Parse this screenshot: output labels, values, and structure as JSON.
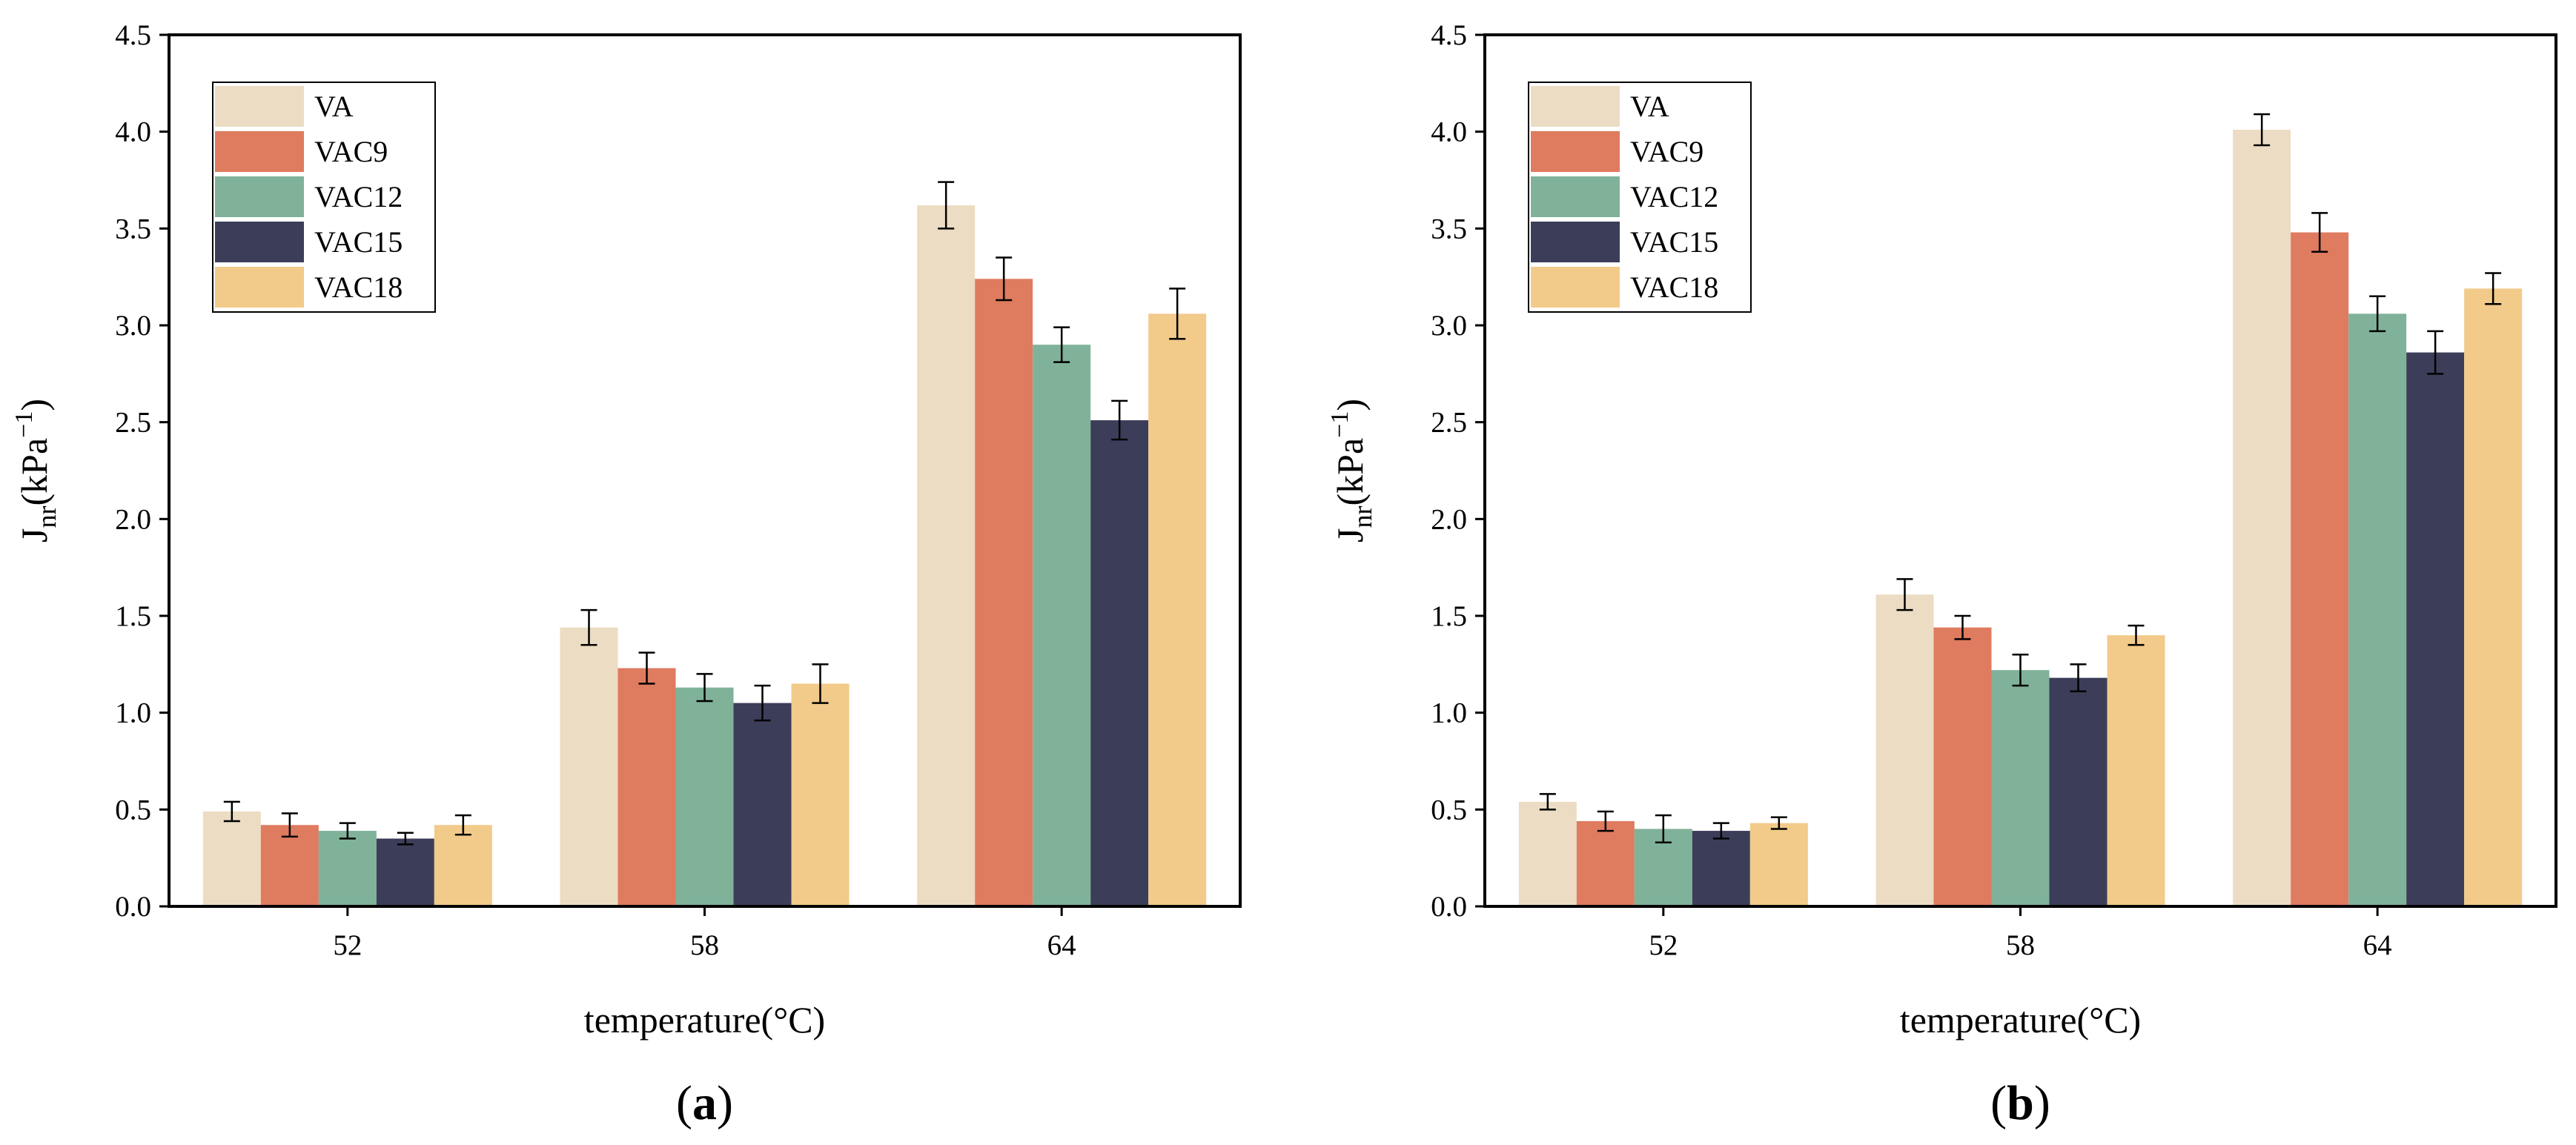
{
  "chart_data": [
    {
      "type": "bar",
      "panel_label": "a",
      "xlabel": "temperature(°C)",
      "ylabel": {
        "base": "J",
        "sub": "nr",
        "unit_open": "(kPa",
        "sup": "−1",
        "unit_close": ")"
      },
      "categories": [
        "52",
        "58",
        "64"
      ],
      "ylim": [
        0,
        4.5
      ],
      "yticks": [
        "0.0",
        "0.5",
        "1.0",
        "1.5",
        "2.0",
        "2.5",
        "3.0",
        "3.5",
        "4.0",
        "4.5"
      ],
      "legend_position": "top-left",
      "series": [
        {
          "name": "VA",
          "color": "#ecdcc3",
          "values": [
            0.49,
            1.44,
            3.62
          ],
          "errors": [
            0.05,
            0.09,
            0.12
          ]
        },
        {
          "name": "VAC9",
          "color": "#df7b5f",
          "values": [
            0.42,
            1.23,
            3.24
          ],
          "errors": [
            0.06,
            0.08,
            0.11
          ]
        },
        {
          "name": "VAC12",
          "color": "#80b29a",
          "values": [
            0.39,
            1.13,
            2.9
          ],
          "errors": [
            0.04,
            0.07,
            0.09
          ]
        },
        {
          "name": "VAC15",
          "color": "#3c3e59",
          "values": [
            0.35,
            1.05,
            2.51
          ],
          "errors": [
            0.03,
            0.09,
            0.1
          ]
        },
        {
          "name": "VAC18",
          "color": "#f2ca8a",
          "values": [
            0.42,
            1.15,
            3.06
          ],
          "errors": [
            0.05,
            0.1,
            0.13
          ]
        }
      ]
    },
    {
      "type": "bar",
      "panel_label": "b",
      "xlabel": "temperature(°C)",
      "ylabel": {
        "base": "J",
        "sub": "nr",
        "unit_open": "(kPa",
        "sup": "−1",
        "unit_close": ")"
      },
      "categories": [
        "52",
        "58",
        "64"
      ],
      "ylim": [
        0,
        4.5
      ],
      "yticks": [
        "0.0",
        "0.5",
        "1.0",
        "1.5",
        "2.0",
        "2.5",
        "3.0",
        "3.5",
        "4.0",
        "4.5"
      ],
      "legend_position": "top-left",
      "series": [
        {
          "name": "VA",
          "color": "#ecdcc3",
          "values": [
            0.54,
            1.61,
            4.01
          ],
          "errors": [
            0.04,
            0.08,
            0.08
          ]
        },
        {
          "name": "VAC9",
          "color": "#df7b5f",
          "values": [
            0.44,
            1.44,
            3.48
          ],
          "errors": [
            0.05,
            0.06,
            0.1
          ]
        },
        {
          "name": "VAC12",
          "color": "#80b29a",
          "values": [
            0.4,
            1.22,
            3.06
          ],
          "errors": [
            0.07,
            0.08,
            0.09
          ]
        },
        {
          "name": "VAC15",
          "color": "#3c3e59",
          "values": [
            0.39,
            1.18,
            2.86
          ],
          "errors": [
            0.04,
            0.07,
            0.11
          ]
        },
        {
          "name": "VAC18",
          "color": "#f2ca8a",
          "values": [
            0.43,
            1.4,
            3.19
          ],
          "errors": [
            0.03,
            0.05,
            0.08
          ]
        }
      ]
    }
  ]
}
